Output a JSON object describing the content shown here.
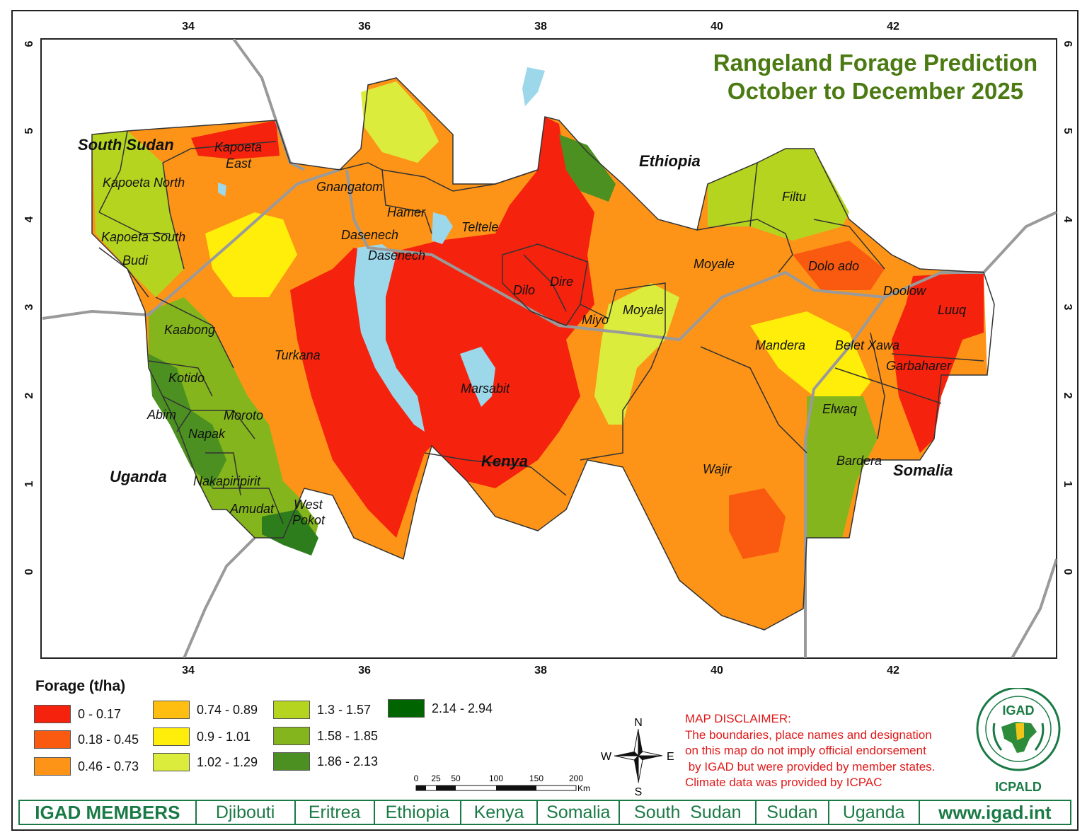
{
  "title": {
    "line1": "Rangeland Forage Prediction",
    "line2": "October to December 2025"
  },
  "axes": {
    "x_ticks": [
      "34",
      "36",
      "38",
      "40",
      "42"
    ],
    "y_ticks": [
      "6",
      "5",
      "4",
      "3",
      "2",
      "1",
      "0"
    ]
  },
  "countries": [
    "South Sudan",
    "Ethiopia",
    "Uganda",
    "Kenya",
    "Somalia"
  ],
  "places": [
    "Kapoeta",
    "East",
    "Kapoeta North",
    "Kapoeta South",
    "Budi",
    "Gnangatom",
    "Hamer",
    "Dasenech",
    "Dasenech",
    "Teltele",
    "Dilo",
    "Dire",
    "Miyo",
    "Moyale",
    "Moyale",
    "Filtu",
    "Dolo ado",
    "Doolow",
    "Luuq",
    "Mandera",
    "Belet Xawa",
    "Garbaharer",
    "Elwaq",
    "Bardera",
    "Wajir",
    "Marsabit",
    "Turkana",
    "Kaabong",
    "Kotido",
    "Abim",
    "Moroto",
    "Napak",
    "Nakapiripirit",
    "Amudat",
    "West",
    "Pokot"
  ],
  "legend": {
    "title": "Forage (t/ha)",
    "items": [
      {
        "label": "0 - 0.17",
        "color": "#f5220e"
      },
      {
        "label": "0.18 - 0.45",
        "color": "#fa5a0f"
      },
      {
        "label": "0.46 - 0.73",
        "color": "#fd9417"
      },
      {
        "label": "0.74 - 0.89",
        "color": "#ffbe10"
      },
      {
        "label": "0.9 - 1.01",
        "color": "#ffee0a"
      },
      {
        "label": "1.02 - 1.29",
        "color": "#dcec3c"
      },
      {
        "label": "1.3 - 1.57",
        "color": "#b5d41f"
      },
      {
        "label": "1.58 - 1.85",
        "color": "#84b51c"
      },
      {
        "label": "1.86 - 2.13",
        "color": "#4b9021"
      },
      {
        "label": "2.14 - 2.94",
        "color": "#006400"
      }
    ]
  },
  "compass": {
    "n": "N",
    "s": "S",
    "e": "E",
    "w": "W"
  },
  "scale_bar": {
    "labels": [
      "0",
      "25",
      "50",
      "100",
      "150",
      "200"
    ],
    "unit": "Km"
  },
  "disclaimer": {
    "heading": "MAP DISCLAIMER:",
    "lines": [
      "The boundaries, place names and designation",
      "on this map do not imply official endorsement",
      " by IGAD but were provided by member states.",
      "Climate data was provided by ICPAC"
    ]
  },
  "logo": {
    "top": "IGAD",
    "bottom": "ICPALD"
  },
  "members": {
    "title": "IGAD MEMBERS",
    "list": [
      "Djibouti",
      "Eritrea",
      "Ethiopia",
      "Kenya",
      "Somalia",
      "South  Sudan",
      "Sudan",
      "Uganda"
    ],
    "url": "www.igad.int"
  },
  "colors": {
    "water": "#9dd7ea",
    "title": "#4b7a12",
    "members": "#1a7a45",
    "disclaimer": "#e0191a"
  }
}
